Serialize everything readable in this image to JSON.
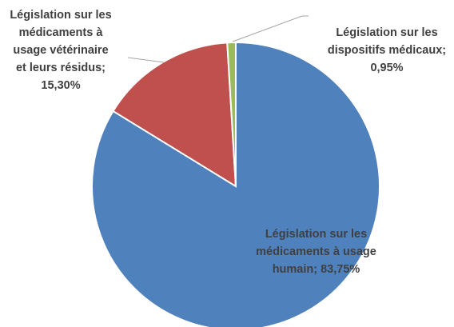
{
  "chart_data": {
    "type": "pie",
    "categories": [
      "Législation sur les médicaments à usage humain",
      "Législation sur les médicaments à usage vétérinaire et leurs résidus",
      "Législation sur les dispositifs médicaux"
    ],
    "values": [
      83.75,
      15.3,
      0.95
    ],
    "value_labels": [
      "83,75%",
      "15,30%",
      "0,95%"
    ],
    "label_separator": "; ",
    "colors": [
      "#4f81bd",
      "#c0504d",
      "#9bbb59"
    ]
  }
}
